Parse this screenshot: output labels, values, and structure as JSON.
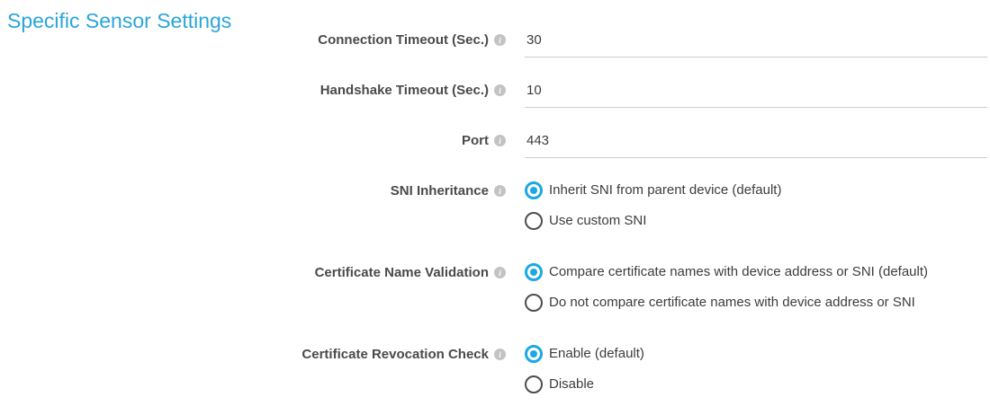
{
  "section": {
    "title": "Specific Sensor Settings"
  },
  "colors": {
    "accent_blue": "#2aa5da",
    "radio_blue": "#1ca8e3",
    "label_gray": "#4a4a4a",
    "text_gray": "#3c3c3c",
    "underline_gray": "#cdcdcd",
    "info_gray": "#c3c3c3"
  },
  "icons": {
    "info": "i"
  },
  "form": {
    "fields": [
      {
        "label": "Connection Timeout (Sec.)",
        "type": "text",
        "value": "30"
      },
      {
        "label": "Handshake Timeout (Sec.)",
        "type": "text",
        "value": "10"
      },
      {
        "label": "Port",
        "type": "text",
        "value": "443"
      },
      {
        "label": "SNI Inheritance",
        "type": "radio",
        "options": [
          {
            "label": "Inherit SNI from parent device (default)",
            "selected": true
          },
          {
            "label": "Use custom SNI",
            "selected": false
          }
        ]
      },
      {
        "label": "Certificate Name Validation",
        "type": "radio",
        "options": [
          {
            "label": "Compare certificate names with device address or SNI (default)",
            "selected": true
          },
          {
            "label": "Do not compare certificate names with device address or SNI",
            "selected": false
          }
        ]
      },
      {
        "label": "Certificate Revocation Check",
        "type": "radio",
        "options": [
          {
            "label": "Enable (default)",
            "selected": true
          },
          {
            "label": "Disable",
            "selected": false
          }
        ]
      }
    ]
  }
}
